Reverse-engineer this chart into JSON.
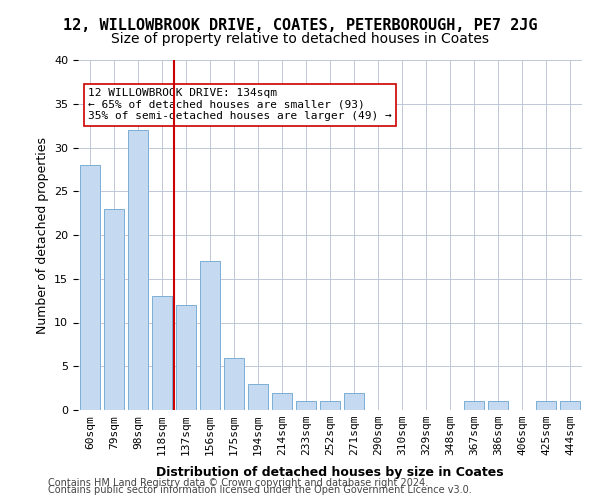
{
  "title1": "12, WILLOWBROOK DRIVE, COATES, PETERBOROUGH, PE7 2JG",
  "title2": "Size of property relative to detached houses in Coates",
  "xlabel": "Distribution of detached houses by size in Coates",
  "ylabel": "Number of detached properties",
  "categories": [
    "60sqm",
    "79sqm",
    "98sqm",
    "118sqm",
    "137sqm",
    "156sqm",
    "175sqm",
    "194sqm",
    "214sqm",
    "233sqm",
    "252sqm",
    "271sqm",
    "290sqm",
    "310sqm",
    "329sqm",
    "348sqm",
    "367sqm",
    "386sqm",
    "406sqm",
    "425sqm",
    "444sqm"
  ],
  "values": [
    28,
    23,
    32,
    13,
    12,
    17,
    6,
    3,
    2,
    1,
    1,
    2,
    0,
    0,
    0,
    0,
    1,
    1,
    0,
    1,
    1
  ],
  "bar_color": "#c5d9f0",
  "bar_edge_color": "#7bafd4",
  "vline_x": 4,
  "vline_color": "#cc0000",
  "annotation_text": "12 WILLOWBROOK DRIVE: 134sqm\n← 65% of detached houses are smaller (93)\n35% of semi-detached houses are larger (49) →",
  "annotation_box_color": "#ffffff",
  "annotation_box_edge": "#cc0000",
  "ylim": [
    0,
    40
  ],
  "yticks": [
    0,
    5,
    10,
    15,
    20,
    25,
    30,
    35,
    40
  ],
  "grid_color": "#c0c8d8",
  "footer1": "Contains HM Land Registry data © Crown copyright and database right 2024.",
  "footer2": "Contains public sector information licensed under the Open Government Licence v3.0.",
  "title1_fontsize": 11,
  "title2_fontsize": 10,
  "xlabel_fontsize": 9,
  "ylabel_fontsize": 9,
  "tick_fontsize": 8,
  "annotation_fontsize": 8,
  "footer_fontsize": 7
}
